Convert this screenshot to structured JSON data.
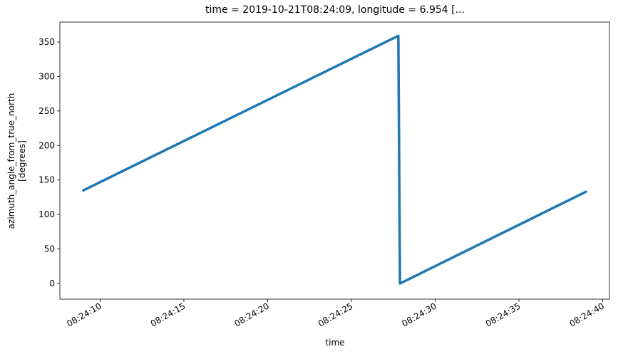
{
  "chart_data": {
    "type": "line",
    "title": "time = 2019-10-21T08:24:09, longitude = 6.954 [...",
    "xlabel": "time",
    "ylabel": [
      "azimuth_angle_from_true_north",
      "[degrees]"
    ],
    "x": [
      "08:24:09.0",
      "08:24:27.8",
      "08:24:27.9",
      "08:24:39.0"
    ],
    "series": [
      {
        "color": "#1f77b4",
        "values": [
          135,
          359,
          0,
          133
        ]
      }
    ],
    "xlim": [
      "08:24:07.6",
      "08:24:40.4"
    ],
    "xticks": [
      "08:24:10",
      "08:24:15",
      "08:24:20",
      "08:24:25",
      "08:24:30",
      "08:24:35",
      "08:24:40"
    ],
    "ylim": [
      -22.7,
      378.9
    ],
    "yticks": [
      0,
      50,
      100,
      150,
      200,
      250,
      300,
      350
    ]
  }
}
